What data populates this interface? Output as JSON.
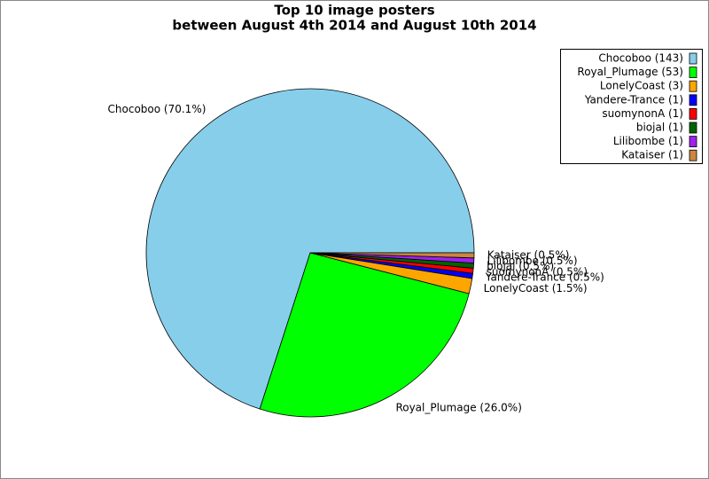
{
  "chart_data": {
    "type": "pie",
    "title": "Top 10 image posters",
    "subtitle": "between August 4th 2014 and August 10th 2014",
    "values": [
      70.1,
      26.0,
      1.5,
      0.5,
      0.5,
      0.5,
      0.5,
      0.5
    ],
    "value_labels": [
      "Chocoboo (70.1%)",
      "Royal_Plumage (26.0%)",
      "LonelyCoast (1.5%)",
      "Yandere-Trance (0.5%)",
      "suomynonA (0.5%)",
      "biojal (0.5%)",
      "Lilibombe (0.5%)",
      "Kataiser (0.5%)"
    ],
    "legend_labels": [
      "Chocoboo (143)",
      "Royal_Plumage (53)",
      "LonelyCoast (3)",
      "Yandere-Trance (1)",
      "suomynonA (1)",
      "biojal (1)",
      "Lilibombe (1)",
      "Kataiser (1)"
    ],
    "colors": [
      "#87ceeb",
      "#00ff00",
      "#ffa500",
      "#0000ff",
      "#ff0000",
      "#006400",
      "#a020f0",
      "#cd853f"
    ],
    "legend_position": "upper right"
  }
}
